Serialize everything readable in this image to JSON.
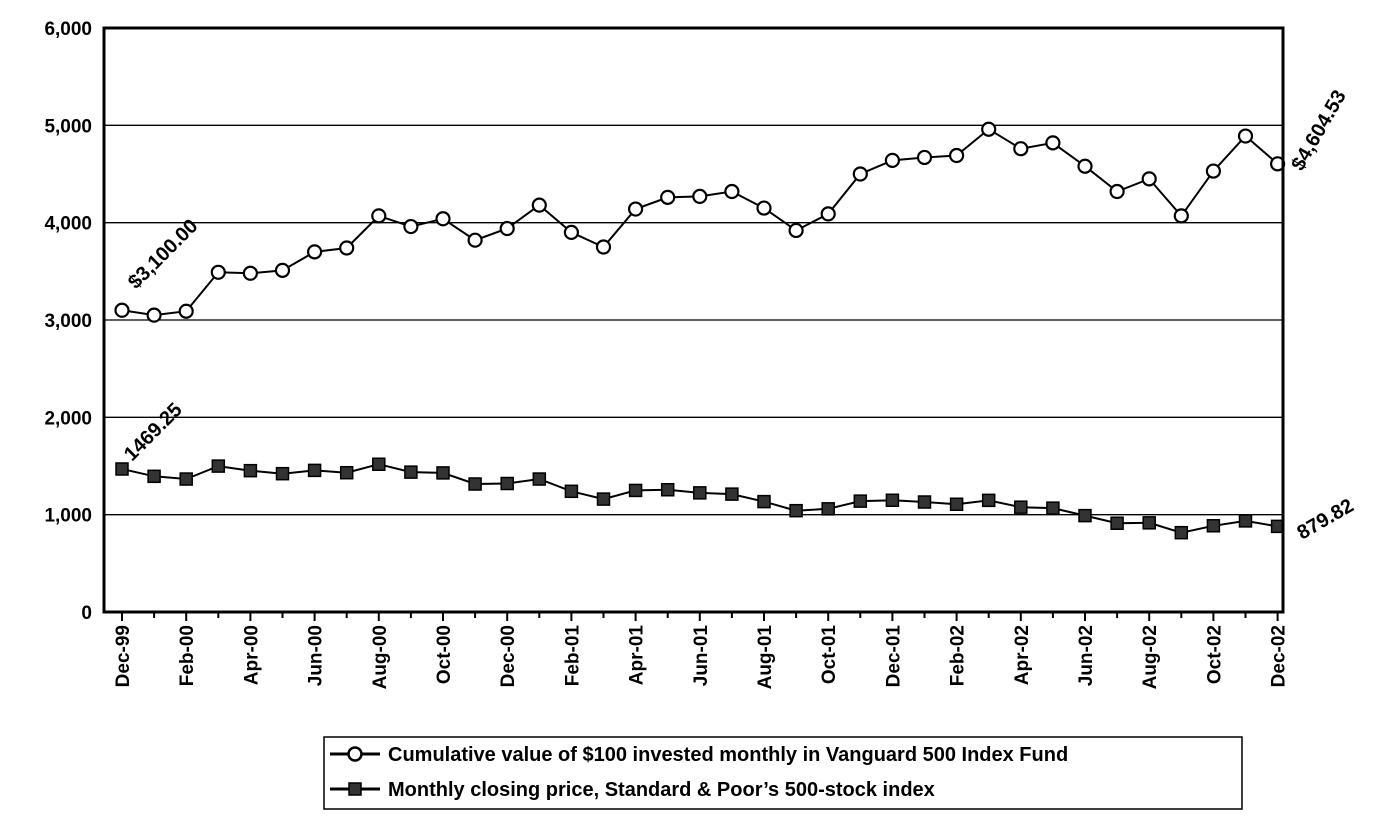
{
  "chart_data": {
    "type": "line",
    "title": "",
    "xlabel": "",
    "ylabel": "",
    "ylim": [
      0,
      6000
    ],
    "y_ticks": [
      "0",
      "1,000",
      "2,000",
      "3,000",
      "4,000",
      "5,000",
      "6,000"
    ],
    "x": [
      "Dec-99",
      "Jan-00",
      "Feb-00",
      "Mar-00",
      "Apr-00",
      "May-00",
      "Jun-00",
      "Jul-00",
      "Aug-00",
      "Sep-00",
      "Oct-00",
      "Nov-00",
      "Dec-00",
      "Jan-01",
      "Feb-01",
      "Mar-01",
      "Apr-01",
      "May-01",
      "Jun-01",
      "Jul-01",
      "Aug-01",
      "Sep-01",
      "Oct-01",
      "Nov-01",
      "Dec-01",
      "Jan-02",
      "Feb-02",
      "Mar-02",
      "Apr-02",
      "May-02",
      "Jun-02",
      "Jul-02",
      "Aug-02",
      "Sep-02",
      "Oct-02",
      "Nov-02",
      "Dec-02"
    ],
    "x_tick_labels": [
      "Dec-99",
      "Feb-00",
      "Apr-00",
      "Jun-00",
      "Aug-00",
      "Oct-00",
      "Dec-00",
      "Feb-01",
      "Apr-01",
      "Jun-01",
      "Aug-01",
      "Oct-01",
      "Dec-01",
      "Feb-02",
      "Apr-02",
      "Jun-02",
      "Aug-02",
      "Oct-02",
      "Dec-02"
    ],
    "grid": "horizontal",
    "legend_position": "bottom-right",
    "series": [
      {
        "name": "Cumulative value of $100 invested monthly in Vanguard 500 Index Fund",
        "marker": "open-circle",
        "values": [
          3100,
          3050,
          3090,
          3490,
          3480,
          3510,
          3700,
          3740,
          4070,
          3960,
          4040,
          3820,
          3940,
          4180,
          3900,
          3750,
          4140,
          4260,
          4270,
          4320,
          4150,
          3920,
          4090,
          4500,
          4640,
          4670,
          4690,
          4960,
          4760,
          4820,
          4580,
          4320,
          4450,
          4070,
          4530,
          4890,
          4604.53
        ]
      },
      {
        "name": "Monthly closing price, Standard & Poor’s 500-stock index",
        "marker": "filled-square",
        "values": [
          1469.25,
          1394,
          1366,
          1499,
          1452,
          1421,
          1455,
          1431,
          1518,
          1437,
          1429,
          1315,
          1320,
          1366,
          1240,
          1160,
          1249,
          1256,
          1224,
          1211,
          1134,
          1041,
          1060,
          1139,
          1148,
          1130,
          1107,
          1147,
          1077,
          1067,
          990,
          912,
          916,
          815,
          886,
          936,
          879.82
        ]
      }
    ],
    "annotations": {
      "fund_start": "$3,100.00",
      "fund_end": "$4,604.53",
      "index_start": "1469.25",
      "index_end": "879.82"
    },
    "colors": {
      "line": "#000000",
      "grid": "#000000",
      "marker_fill_open": "#ffffff",
      "marker_fill_square": "#333333"
    }
  }
}
